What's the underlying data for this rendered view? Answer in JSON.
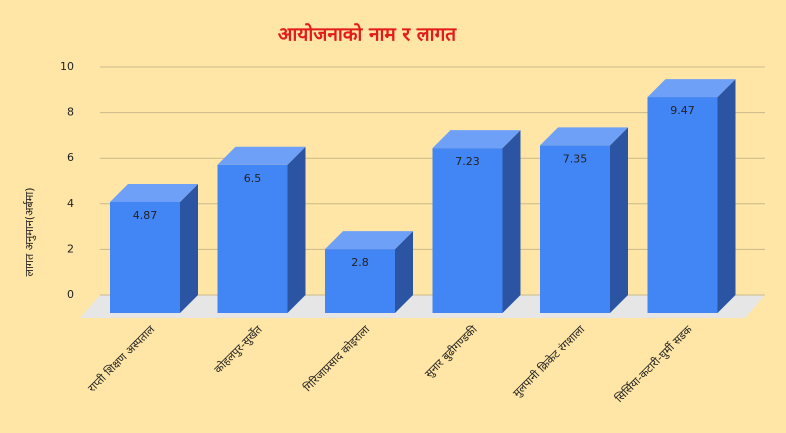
{
  "chart_data": {
    "type": "bar3d",
    "title": "आयोजनाको नाम र लागत",
    "y_axis_label": "लागत अनुमान(अर्बमा)",
    "categories": [
      "राप्ती शिक्षण अस्पताल",
      "कोहलपुर-सुर्खेत",
      "गिरिजाप्रसाद कोइराला",
      "सुनार बुढीगण्डकी",
      "मुलपानी क्रिकेट रंगशाला",
      "सिर्सिया-कटारी-घुर्मी सडक"
    ],
    "values": [
      4.87,
      6.5,
      2.8,
      7.23,
      7.35,
      9.47
    ],
    "color": "#4285f4",
    "ylim": [
      0,
      10
    ],
    "yticks": [
      0,
      2,
      4,
      6,
      8,
      10
    ],
    "grid": true
  }
}
